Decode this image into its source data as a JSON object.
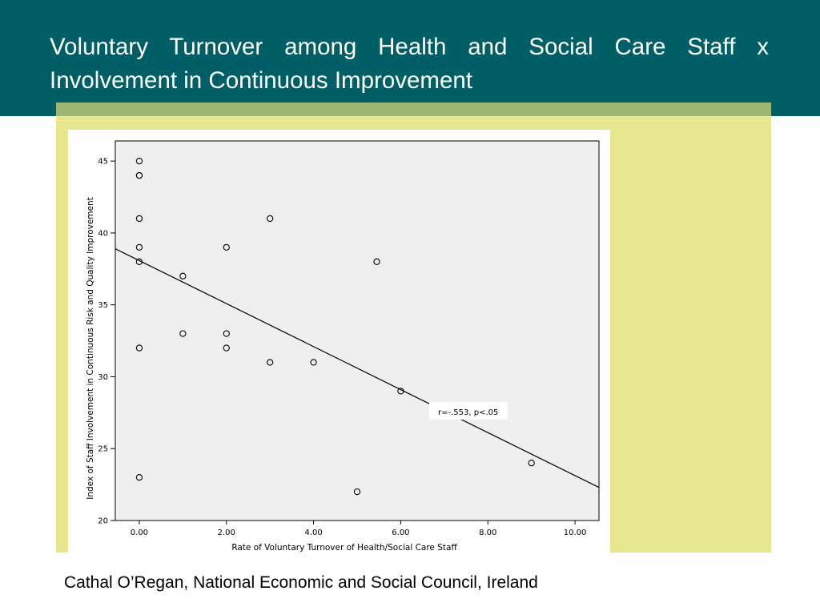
{
  "slide": {
    "title": "Voluntary Turnover among Health and Social Care Staff x Involvement in Continuous Improvement",
    "footer": "Cathal O’Regan, National Economic and Social Council, Ireland"
  },
  "colors": {
    "header_bg": "#005f66",
    "accent_yellow": "#e6e68f",
    "accent_strip": "#9db673",
    "plot_bg": "#efefef"
  },
  "chart_data": {
    "type": "scatter",
    "xlabel": "Rate of Voluntary Turnover of Health/Social Care Staff",
    "ylabel": "Index of Staff Involvement in Continuous Risk and Quality Improvement",
    "xlim": [
      -0.55,
      10.55
    ],
    "ylim": [
      20,
      46.4
    ],
    "x_ticks": [
      0,
      2,
      4,
      6,
      8,
      10
    ],
    "x_tick_labels": [
      "0.00",
      "2.00",
      "4.00",
      "6.00",
      "8.00",
      "10.00"
    ],
    "y_ticks": [
      20,
      25,
      30,
      35,
      40,
      45
    ],
    "y_tick_labels": [
      "20",
      "25",
      "30",
      "35",
      "40",
      "45"
    ],
    "points": [
      {
        "x": 0,
        "y": 45
      },
      {
        "x": 0,
        "y": 44
      },
      {
        "x": 0,
        "y": 44
      },
      {
        "x": 0,
        "y": 41
      },
      {
        "x": 0,
        "y": 39
      },
      {
        "x": 0,
        "y": 38
      },
      {
        "x": 0,
        "y": 32
      },
      {
        "x": 0,
        "y": 23
      },
      {
        "x": 1,
        "y": 37
      },
      {
        "x": 1,
        "y": 33
      },
      {
        "x": 2,
        "y": 39
      },
      {
        "x": 2,
        "y": 33
      },
      {
        "x": 2,
        "y": 32
      },
      {
        "x": 3,
        "y": 41
      },
      {
        "x": 3,
        "y": 31
      },
      {
        "x": 4,
        "y": 31
      },
      {
        "x": 5,
        "y": 22
      },
      {
        "x": 5.45,
        "y": 38
      },
      {
        "x": 6,
        "y": 29
      },
      {
        "x": 9,
        "y": 24
      }
    ],
    "fit_line": {
      "x": [
        -0.55,
        10.55
      ],
      "y": [
        38.9,
        22.3
      ]
    },
    "annotation": "r=-.553, p<.05",
    "grid": false,
    "legend": "none"
  }
}
